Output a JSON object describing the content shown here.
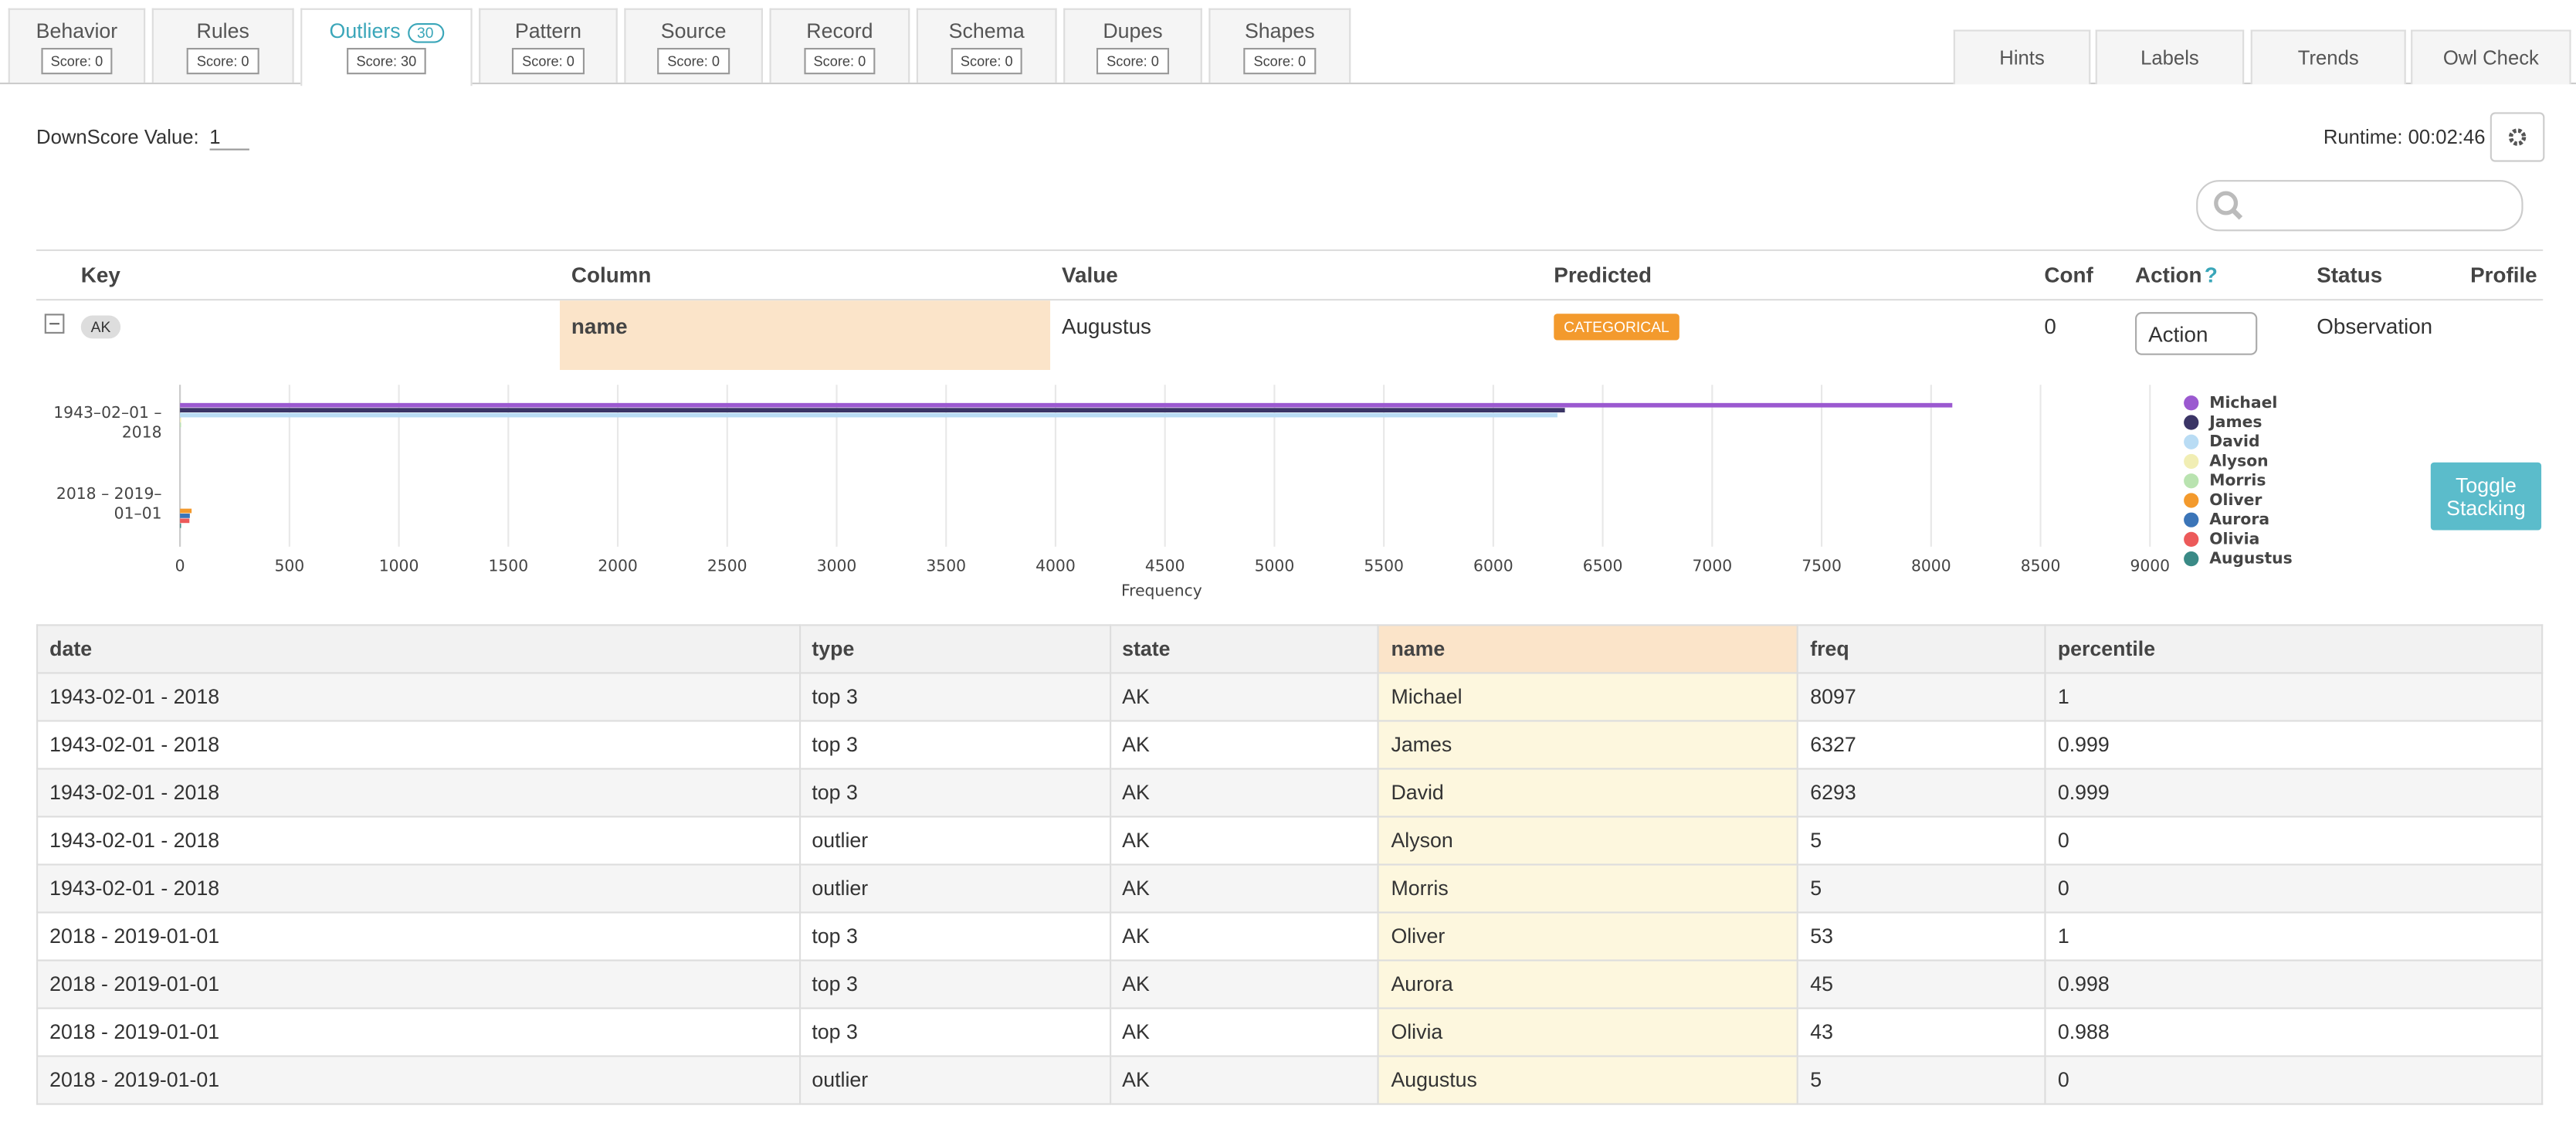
{
  "tabs": [
    {
      "label": "Behavior",
      "score": "Score: 0"
    },
    {
      "label": "Rules",
      "score": "Score: 0"
    },
    {
      "label": "Outliers",
      "badge": "30",
      "score": "Score: 30"
    },
    {
      "label": "Pattern",
      "score": "Score: 0"
    },
    {
      "label": "Source",
      "score": "Score: 0"
    },
    {
      "label": "Record",
      "score": "Score: 0"
    },
    {
      "label": "Schema",
      "score": "Score: 0"
    },
    {
      "label": "Dupes",
      "score": "Score: 0"
    },
    {
      "label": "Shapes",
      "score": "Score: 0"
    }
  ],
  "toolbar": [
    "Hints",
    "Labels",
    "Trends",
    "Owl Check"
  ],
  "downscore": {
    "label": "DownScore Value:",
    "value": "1"
  },
  "runtime": "Runtime: 00:02:46",
  "outlier_table": {
    "headers": [
      "Key",
      "Column",
      "Value",
      "Predicted",
      "Conf",
      "Action",
      "Status",
      "Profile"
    ],
    "help": "?",
    "row": {
      "key": "AK",
      "column": "name",
      "value": "Augustus",
      "predicted": "CATEGORICAL",
      "conf": 0,
      "action": "Action",
      "status": "Observation"
    }
  },
  "chart_data": {
    "type": "hbar",
    "categories": [
      "1943–02–01 – 2018",
      "2018 – 2019–01–01"
    ],
    "series": [
      {
        "name": "Michael",
        "color": "#9b59d0",
        "values": [
          8097,
          null
        ]
      },
      {
        "name": "James",
        "color": "#3b3566",
        "values": [
          6327,
          null
        ]
      },
      {
        "name": "David",
        "color": "#b9dcf4",
        "values": [
          6293,
          null
        ]
      },
      {
        "name": "Alyson",
        "color": "#f1eeb4",
        "values": [
          5,
          null
        ]
      },
      {
        "name": "Morris",
        "color": "#b9e3b0",
        "values": [
          5,
          null
        ]
      },
      {
        "name": "Oliver",
        "color": "#f39a2d",
        "values": [
          null,
          53
        ]
      },
      {
        "name": "Aurora",
        "color": "#3b75b8",
        "values": [
          null,
          45
        ]
      },
      {
        "name": "Olivia",
        "color": "#ec5a5a",
        "values": [
          null,
          43
        ]
      },
      {
        "name": "Augustus",
        "color": "#3a8a86",
        "values": [
          null,
          5
        ]
      }
    ],
    "xlim": [
      0,
      9000
    ],
    "xticks": [
      0,
      500,
      1000,
      1500,
      2000,
      2500,
      3000,
      3500,
      4000,
      4500,
      5000,
      5500,
      6000,
      6500,
      7000,
      7500,
      8000,
      8500,
      9000
    ],
    "xlabel": "Frequency",
    "grid": true
  },
  "toggle_button": "Toggle Stacking",
  "detail_table": {
    "columns": [
      "date",
      "type",
      "state",
      "name",
      "freq",
      "percentile"
    ],
    "rows": [
      [
        "1943-02-01 - 2018",
        "top 3",
        "AK",
        "Michael",
        8097,
        1
      ],
      [
        "1943-02-01 - 2018",
        "top 3",
        "AK",
        "James",
        6327,
        0.999
      ],
      [
        "1943-02-01 - 2018",
        "top 3",
        "AK",
        "David",
        6293,
        0.999
      ],
      [
        "1943-02-01 - 2018",
        "outlier",
        "AK",
        "Alyson",
        5,
        0
      ],
      [
        "1943-02-01 - 2018",
        "outlier",
        "AK",
        "Morris",
        5,
        0
      ],
      [
        "2018 - 2019-01-01",
        "top 3",
        "AK",
        "Oliver",
        53,
        1
      ],
      [
        "2018 - 2019-01-01",
        "top 3",
        "AK",
        "Aurora",
        45,
        0.998
      ],
      [
        "2018 - 2019-01-01",
        "top 3",
        "AK",
        "Olivia",
        43,
        0.988
      ],
      [
        "2018 - 2019-01-01",
        "outlier",
        "AK",
        "Augustus",
        5,
        0
      ]
    ]
  }
}
